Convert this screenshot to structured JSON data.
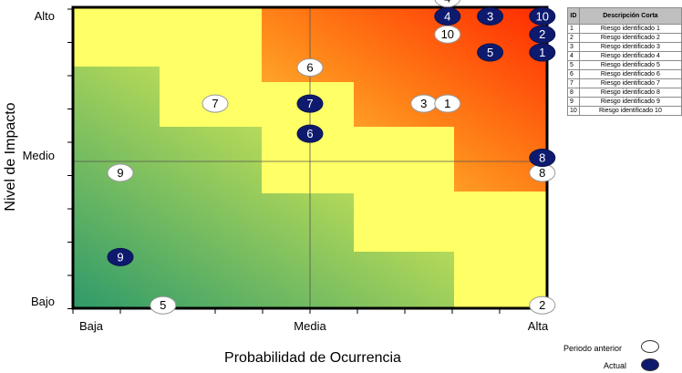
{
  "chart_data": {
    "type": "scatter",
    "xlabel": "Probabilidad de Ocurrencia",
    "ylabel": "Nivel de Impacto",
    "x_ticks": [
      "Baja",
      "Media",
      "Alta"
    ],
    "y_ticks": [
      "Alto",
      "Medio",
      "Bajo"
    ],
    "xlim": [
      0,
      10
    ],
    "ylim": [
      0,
      10
    ],
    "colors": {
      "low": "#2e9a6a",
      "mid": "#ffff66",
      "high": "#ff2a00",
      "actual": "#0d1a6e",
      "previous": "#ffffff"
    },
    "series": [
      {
        "name": "Periodo anterior",
        "points": [
          {
            "label": "4",
            "x": 7.9,
            "y": 10.3
          },
          {
            "label": "10",
            "x": 7.9,
            "y": 9.1
          },
          {
            "label": "6",
            "x": 5.0,
            "y": 8.0
          },
          {
            "label": "7",
            "x": 3.0,
            "y": 6.8
          },
          {
            "label": "3",
            "x": 7.4,
            "y": 6.8
          },
          {
            "label": "1",
            "x": 7.9,
            "y": 6.8
          },
          {
            "label": "9",
            "x": 1.0,
            "y": 4.5
          },
          {
            "label": "8",
            "x": 9.9,
            "y": 4.5
          },
          {
            "label": "5",
            "x": 1.9,
            "y": 0.1
          },
          {
            "label": "2",
            "x": 9.9,
            "y": 0.1
          }
        ]
      },
      {
        "name": "Actual",
        "points": [
          {
            "label": "4",
            "x": 7.9,
            "y": 9.7
          },
          {
            "label": "3",
            "x": 8.8,
            "y": 9.7
          },
          {
            "label": "10",
            "x": 9.9,
            "y": 9.7
          },
          {
            "label": "2",
            "x": 9.9,
            "y": 9.1
          },
          {
            "label": "5",
            "x": 8.8,
            "y": 8.5
          },
          {
            "label": "1",
            "x": 9.9,
            "y": 8.5
          },
          {
            "label": "7",
            "x": 5.0,
            "y": 6.8
          },
          {
            "label": "6",
            "x": 5.0,
            "y": 5.8
          },
          {
            "label": "8",
            "x": 9.9,
            "y": 5.0
          },
          {
            "label": "9",
            "x": 1.0,
            "y": 1.7
          }
        ]
      }
    ]
  },
  "table": {
    "header_id": "ID",
    "header_desc": "Descripción Corta",
    "rows": [
      {
        "id": "1",
        "desc": "Riesgo identificado 1"
      },
      {
        "id": "2",
        "desc": "Riesgo identificado 2"
      },
      {
        "id": "3",
        "desc": "Riesgo identificado 3"
      },
      {
        "id": "4",
        "desc": "Riesgo identificado 4"
      },
      {
        "id": "5",
        "desc": "Riesgo identificado 5"
      },
      {
        "id": "6",
        "desc": "Riesgo identificado 6"
      },
      {
        "id": "7",
        "desc": "Riesgo identificado 7"
      },
      {
        "id": "8",
        "desc": "Riesgo identificado 8"
      },
      {
        "id": "9",
        "desc": "Riesgo identificado 9"
      },
      {
        "id": "10",
        "desc": "Riesgo identificado 10"
      }
    ]
  },
  "key": {
    "previous_label": "Periodo anterior",
    "actual_label": "Actual"
  }
}
